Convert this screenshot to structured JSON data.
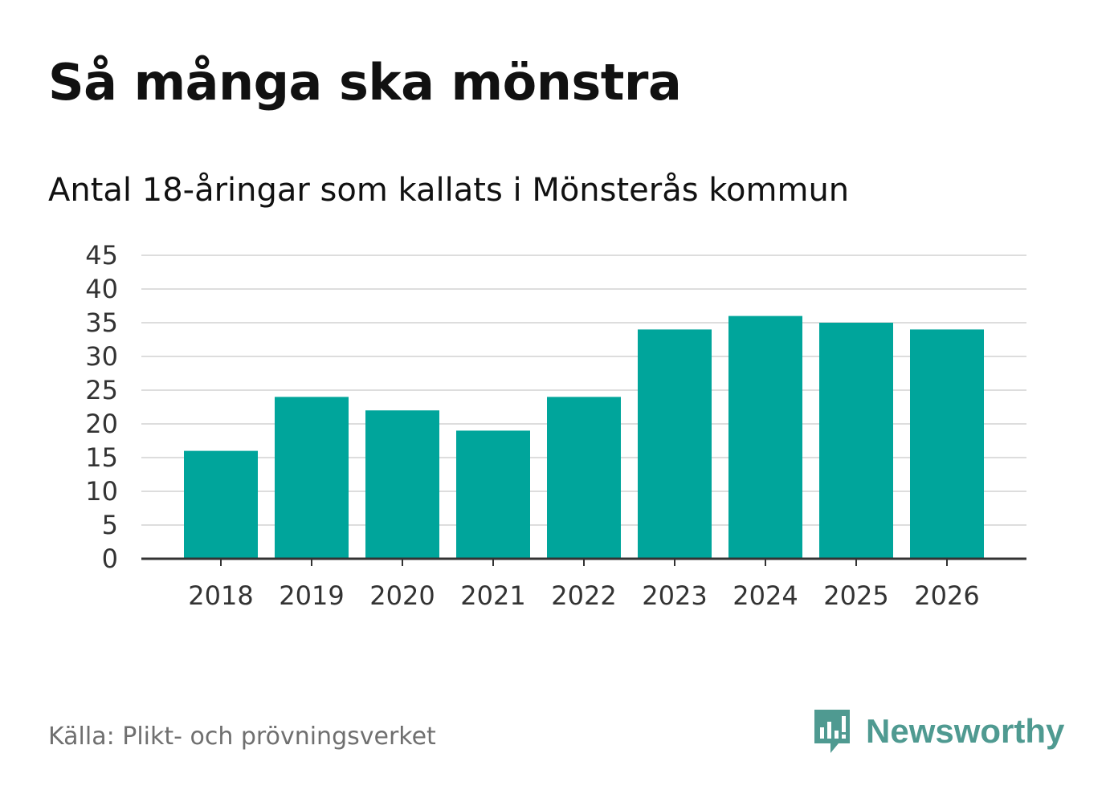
{
  "header": {
    "title": "Så många ska mönstra",
    "subtitle": "Antal 18-åringar som kallats i Mönsterås kommun"
  },
  "footer": {
    "source": "Källa: Plikt- och prövningsverket",
    "brand": "Newsworthy"
  },
  "colors": {
    "bar": "#00a59b",
    "grid": "#dddddd",
    "axis": "#333333",
    "brand": "#4f9a91"
  },
  "chart_data": {
    "type": "bar",
    "title": "Så många ska mönstra",
    "subtitle": "Antal 18-åringar som kallats i Mönsterås kommun",
    "xlabel": "",
    "ylabel": "",
    "categories": [
      "2018",
      "2019",
      "2020",
      "2021",
      "2022",
      "2023",
      "2024",
      "2025",
      "2026"
    ],
    "values": [
      16,
      24,
      22,
      19,
      24,
      34,
      36,
      35,
      34
    ],
    "ylim": [
      0,
      45
    ],
    "yticks": [
      0,
      5,
      10,
      15,
      20,
      25,
      30,
      35,
      40,
      45
    ],
    "grid": true,
    "legend": "none"
  }
}
